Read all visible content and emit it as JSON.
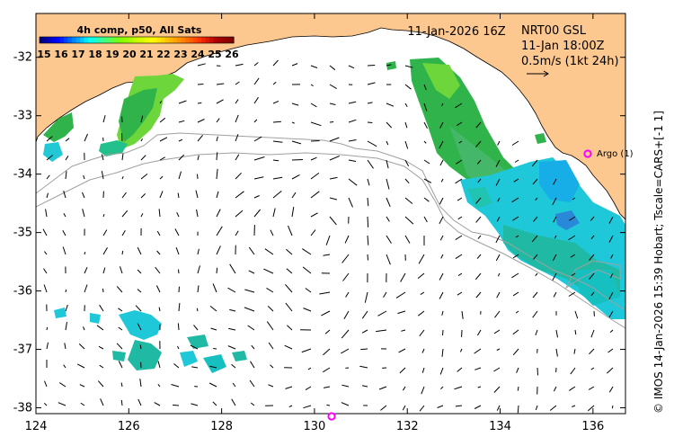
{
  "colorbar": {
    "title": "4h comp, p50, All Sats",
    "ticks": [
      "15",
      "16",
      "17",
      "18",
      "19",
      "20",
      "21",
      "22",
      "23",
      "24",
      "25",
      "26"
    ]
  },
  "header": {
    "date_label": "11-Jan-2026 16Z",
    "product": "NRT00 GSL",
    "valid_time": "11-Jan 18:00Z",
    "vector_scale": "0.5m/s (1kt 24h)"
  },
  "annotations": {
    "argo_label": "Argo (1)"
  },
  "axes": {
    "x_ticks": [
      "124",
      "126",
      "128",
      "130",
      "132",
      "134",
      "136"
    ],
    "y_ticks": [
      "-32",
      "-33",
      "-34",
      "-35",
      "-36",
      "-37",
      "-38"
    ],
    "x_range": [
      124,
      136.7
    ],
    "y_range": [
      -31.25,
      -38.1
    ]
  },
  "credit": "© IMOS 14-Jan-2026 15:39 Hobart; Tscale=CARS+[-1 1]",
  "colors": {
    "land": "#fcc890",
    "sst_green": "#2fb34a",
    "sst_cyan": "#1fc8d8",
    "sst_teal": "#20b9a4",
    "argo_marker": "#ff00ff",
    "shelf_contour": "#a0a0a0"
  }
}
